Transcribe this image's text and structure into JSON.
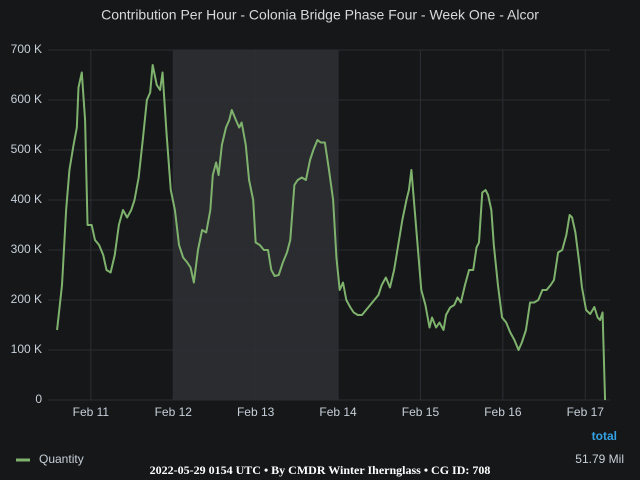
{
  "chart_data": {
    "type": "line",
    "title": "Contribution Per Hour - Colonia Bridge Phase Four - Week One - Alcor",
    "x": [
      10.59,
      10.65,
      10.7,
      10.74,
      10.79,
      10.83,
      10.85,
      10.89,
      10.93,
      10.96,
      11.01,
      11.05,
      11.1,
      11.15,
      11.19,
      11.24,
      11.29,
      11.34,
      11.39,
      11.44,
      11.49,
      11.53,
      11.58,
      11.63,
      11.68,
      11.72,
      11.75,
      11.8,
      11.84,
      11.87,
      11.92,
      11.97,
      12.02,
      12.07,
      12.12,
      12.17,
      12.21,
      12.25,
      12.3,
      12.35,
      12.4,
      12.45,
      12.48,
      12.52,
      12.55,
      12.59,
      12.64,
      12.68,
      12.71,
      12.76,
      12.8,
      12.83,
      12.88,
      12.92,
      12.97,
      13.0,
      13.05,
      13.1,
      13.15,
      13.19,
      13.23,
      13.28,
      13.33,
      13.38,
      13.42,
      13.47,
      13.51,
      13.56,
      13.61,
      13.66,
      13.7,
      13.75,
      13.79,
      13.84,
      13.89,
      13.94,
      13.98,
      14.02,
      14.06,
      14.1,
      14.15,
      14.19,
      14.24,
      14.29,
      14.34,
      14.39,
      14.44,
      14.49,
      14.53,
      14.58,
      14.63,
      14.68,
      14.73,
      14.78,
      14.83,
      14.86,
      14.89,
      14.92,
      14.96,
      15.01,
      15.06,
      15.11,
      15.14,
      15.19,
      15.23,
      15.28,
      15.31,
      15.36,
      15.41,
      15.45,
      15.49,
      15.54,
      15.59,
      15.64,
      15.68,
      15.71,
      15.75,
      15.79,
      15.82,
      15.86,
      15.89,
      15.94,
      15.99,
      16.04,
      16.09,
      16.14,
      16.19,
      16.23,
      16.28,
      16.33,
      16.38,
      16.43,
      16.48,
      16.53,
      16.58,
      16.62,
      16.67,
      16.72,
      16.77,
      16.81,
      16.84,
      16.88,
      16.93,
      16.96,
      17.01,
      17.06,
      17.11,
      17.15,
      17.18,
      17.21,
      17.24
    ],
    "series": [
      {
        "name": "Quantity",
        "color": "#7eb26d",
        "values": [
          140000,
          230000,
          380000,
          460000,
          510000,
          545000,
          625000,
          655000,
          560000,
          350000,
          350000,
          320000,
          310000,
          290000,
          260000,
          255000,
          290000,
          350000,
          380000,
          365000,
          380000,
          400000,
          445000,
          520000,
          600000,
          615000,
          670000,
          630000,
          620000,
          655000,
          530000,
          420000,
          380000,
          310000,
          285000,
          275000,
          265000,
          235000,
          300000,
          340000,
          335000,
          380000,
          450000,
          475000,
          450000,
          510000,
          545000,
          560000,
          580000,
          560000,
          545000,
          555000,
          510000,
          440000,
          400000,
          315000,
          310000,
          300000,
          300000,
          260000,
          248000,
          250000,
          275000,
          295000,
          320000,
          430000,
          440000,
          445000,
          440000,
          480000,
          500000,
          520000,
          515000,
          515000,
          460000,
          400000,
          285000,
          220000,
          235000,
          200000,
          185000,
          175000,
          170000,
          170000,
          180000,
          190000,
          200000,
          210000,
          230000,
          245000,
          225000,
          260000,
          310000,
          360000,
          400000,
          420000,
          460000,
          400000,
          320000,
          220000,
          190000,
          145000,
          165000,
          145000,
          155000,
          140000,
          170000,
          185000,
          190000,
          205000,
          195000,
          230000,
          260000,
          260000,
          305000,
          315000,
          415000,
          420000,
          410000,
          380000,
          310000,
          230000,
          165000,
          155000,
          135000,
          120000,
          100000,
          115000,
          140000,
          195000,
          195000,
          200000,
          220000,
          220000,
          230000,
          240000,
          295000,
          300000,
          330000,
          370000,
          365000,
          335000,
          270000,
          225000,
          180000,
          172000,
          186000,
          165000,
          160000,
          175000,
          0
        ]
      }
    ],
    "xlim": [
      10.48,
      17.3
    ],
    "xticks": [
      {
        "value": 11,
        "label": "Feb 11"
      },
      {
        "value": 12,
        "label": "Feb 12"
      },
      {
        "value": 13,
        "label": "Feb 13"
      },
      {
        "value": 14,
        "label": "Feb 14"
      },
      {
        "value": 15,
        "label": "Feb 15"
      },
      {
        "value": 16,
        "label": "Feb 16"
      },
      {
        "value": 17,
        "label": "Feb 17"
      }
    ],
    "ylim": [
      0,
      700000
    ],
    "yticks": [
      0,
      {
        "value": 100000,
        "label": "100 K"
      },
      {
        "value": 200000,
        "label": "200 K"
      },
      {
        "value": 300000,
        "label": "300 K"
      },
      {
        "value": 400000,
        "label": "400 K"
      },
      {
        "value": 500000,
        "label": "500 K"
      },
      {
        "value": 600000,
        "label": "600 K"
      },
      {
        "value": 700000,
        "label": "700 K"
      }
    ],
    "grid": true,
    "highlight": [
      12,
      14
    ],
    "legend": {
      "header": "total",
      "totals": [
        "51.79 Mil"
      ]
    },
    "footer": "2022-05-29 0154 UTC • By CMDR Winter Ihernglass • CG ID: 708"
  }
}
